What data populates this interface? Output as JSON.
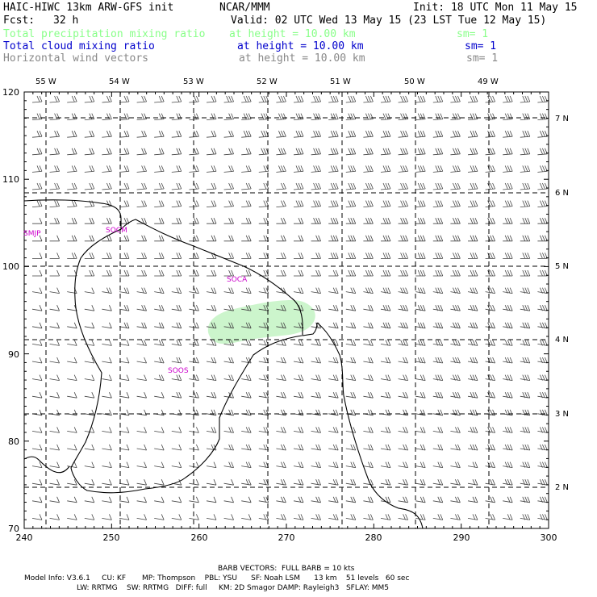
{
  "header": {
    "model_title": "HAIC-HIWC 13km ARW-GFS init",
    "center": "NCAR/MMM",
    "init": "Init: 18 UTC Mon 11 May 15",
    "fcst_label": "Fcst:",
    "fcst_value": "32 h",
    "valid": "Valid: 02 UTC Wed 13 May 15 (23 LST Tue 12 May 15)"
  },
  "fields": [
    {
      "name": "Total precipitation mixing ratio",
      "level": "at height = 10.00 km",
      "sm": "sm= 1",
      "color": "#88ff88"
    },
    {
      "name": "Total cloud mixing ratio",
      "level": "at height = 10.00 km",
      "sm": "sm= 1",
      "color": "#0000cc"
    },
    {
      "name": "Horizontal wind vectors",
      "level": "at height = 10.00 km",
      "sm": "sm= 1",
      "color": "#888888"
    }
  ],
  "map": {
    "top_lon_labels": [
      "55 W",
      "54 W",
      "53 W",
      "52 W",
      "51 W",
      "50 W",
      "49 W"
    ],
    "right_lat_labels": [
      "7 N",
      "6 N",
      "5 N",
      "4 N",
      "3 N",
      "2 N"
    ],
    "y_ticks": [
      "120",
      "110",
      "100",
      "90",
      "80",
      "70"
    ],
    "x_ticks": [
      "240",
      "250",
      "260",
      "270",
      "280",
      "290",
      "300"
    ],
    "stations": [
      "SMJP",
      "SOCM",
      "SOCA",
      "SOOS"
    ],
    "station_color": "#cc00cc",
    "precip_color": "#ccf5cc"
  },
  "footer": {
    "barb_note": "BARB VECTORS:  FULL BARB = 10 kts",
    "model_info_1": "Model Info: V3.6.1     CU: KF       MP: Thompson    PBL: YSU      SF: Noah LSM      13 km    51 levels   60 sec",
    "model_info_2": "LW: RRTMG    SW: RRTMG   DIFF: full     KM: 2D Smagor DAMP: Rayleigh3   SFLAY: MM5"
  }
}
